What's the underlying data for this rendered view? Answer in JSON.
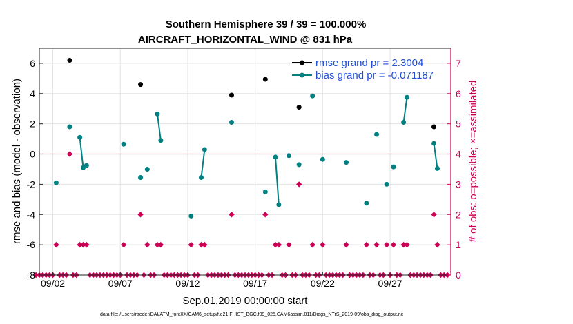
{
  "chart_data": {
    "type": "line",
    "title": "Southern Hemisphere 39 / 39 = 100.000%",
    "subtitle": "AIRCRAFT_HORIZONTAL_WIND @ 831 hPa",
    "xlabel": "Sep.01,2019 00:00:00 start",
    "ylabel": "rmse and bias (model - observation)",
    "y2label": "# of obs: o=possible; ×=assimilated",
    "xlim": [
      0,
      30.5
    ],
    "ylim": [
      -8,
      7
    ],
    "y2lim": [
      0,
      7.5
    ],
    "yticks": [
      -8,
      -6,
      -4,
      -2,
      0,
      2,
      4,
      6
    ],
    "y2ticks": [
      0,
      1,
      2,
      3,
      4,
      5,
      6,
      7
    ],
    "xticks": [
      {
        "value": 1.0,
        "label": "09/02"
      },
      {
        "value": 6.0,
        "label": "09/07"
      },
      {
        "value": 11.0,
        "label": "09/12"
      },
      {
        "value": 16.0,
        "label": "09/17"
      },
      {
        "value": 21.0,
        "label": "09/22"
      },
      {
        "value": 26.0,
        "label": "09/27"
      }
    ],
    "zero_line": 0,
    "grid": true,
    "legend_position": "top-right",
    "series": [
      {
        "name": "rmse grand pr = 2.3004",
        "color": "#000000",
        "points": [
          [
            2.25,
            6.2
          ],
          [
            7.5,
            4.6
          ],
          [
            14.25,
            3.9
          ],
          [
            16.75,
            4.95
          ],
          [
            19.25,
            3.1
          ],
          [
            29.25,
            1.8
          ]
        ]
      },
      {
        "name": "bias grand pr = -0.071187",
        "color": "#008080",
        "segments": [
          [
            [
              1.25,
              -1.9
            ]
          ],
          [
            [
              2.25,
              1.8
            ]
          ],
          [
            [
              3.0,
              1.1
            ],
            [
              3.25,
              -0.9
            ],
            [
              3.5,
              -0.75
            ]
          ],
          [
            [
              6.25,
              0.65
            ]
          ],
          [
            [
              7.5,
              -1.55
            ]
          ],
          [
            [
              8.0,
              -1.0
            ]
          ],
          [
            [
              8.75,
              2.65
            ],
            [
              9.0,
              0.9
            ]
          ],
          [
            [
              11.25,
              -4.1
            ]
          ],
          [
            [
              12.0,
              -1.55
            ],
            [
              12.25,
              0.3
            ]
          ],
          [
            [
              14.25,
              2.1
            ]
          ],
          [
            [
              16.75,
              -2.5
            ]
          ],
          [
            [
              17.5,
              -0.2
            ],
            [
              17.75,
              -3.35
            ]
          ],
          [
            [
              18.5,
              -0.1
            ]
          ],
          [
            [
              19.25,
              -0.7
            ]
          ],
          [
            [
              20.25,
              3.85
            ]
          ],
          [
            [
              21.0,
              -0.35
            ]
          ],
          [
            [
              22.75,
              -0.55
            ]
          ],
          [
            [
              24.25,
              -3.25
            ]
          ],
          [
            [
              25.0,
              1.3
            ]
          ],
          [
            [
              25.75,
              -2.0
            ]
          ],
          [
            [
              26.25,
              -0.85
            ]
          ],
          [
            [
              27.0,
              2.1
            ],
            [
              27.25,
              3.75
            ]
          ],
          [
            [
              29.25,
              0.7
            ],
            [
              29.5,
              -0.95
            ]
          ]
        ]
      }
    ],
    "obs_count": {
      "name": "# of obs assimilated",
      "color": "#cc0055",
      "axis": "right",
      "points": [
        [
          -0.25,
          0
        ],
        [
          0.0,
          0
        ],
        [
          0.25,
          0
        ],
        [
          0.5,
          0
        ],
        [
          0.75,
          0
        ],
        [
          1.0,
          0
        ],
        [
          1.25,
          1
        ],
        [
          1.5,
          0
        ],
        [
          1.75,
          0
        ],
        [
          2.0,
          0
        ],
        [
          2.25,
          4
        ],
        [
          2.5,
          0
        ],
        [
          2.75,
          0
        ],
        [
          3.0,
          1
        ],
        [
          3.25,
          1
        ],
        [
          3.5,
          1
        ],
        [
          3.75,
          0
        ],
        [
          4.0,
          0
        ],
        [
          4.25,
          0
        ],
        [
          4.5,
          0
        ],
        [
          4.75,
          0
        ],
        [
          5.0,
          0
        ],
        [
          5.25,
          0
        ],
        [
          5.5,
          0
        ],
        [
          5.75,
          0
        ],
        [
          6.0,
          0
        ],
        [
          6.25,
          1
        ],
        [
          6.5,
          0
        ],
        [
          6.75,
          0
        ],
        [
          7.0,
          0
        ],
        [
          7.25,
          0
        ],
        [
          7.5,
          2
        ],
        [
          7.75,
          0
        ],
        [
          8.0,
          1
        ],
        [
          8.25,
          0
        ],
        [
          8.5,
          0
        ],
        [
          8.75,
          1
        ],
        [
          9.0,
          1
        ],
        [
          9.25,
          0
        ],
        [
          9.5,
          0
        ],
        [
          9.75,
          0
        ],
        [
          10.0,
          0
        ],
        [
          10.25,
          0
        ],
        [
          10.5,
          0
        ],
        [
          10.75,
          0
        ],
        [
          11.0,
          0
        ],
        [
          11.25,
          1
        ],
        [
          11.5,
          0
        ],
        [
          11.75,
          0
        ],
        [
          12.0,
          1
        ],
        [
          12.25,
          1
        ],
        [
          12.5,
          0
        ],
        [
          12.75,
          0
        ],
        [
          13.0,
          0
        ],
        [
          13.25,
          0
        ],
        [
          13.5,
          0
        ],
        [
          13.75,
          0
        ],
        [
          14.0,
          0
        ],
        [
          14.25,
          2
        ],
        [
          14.5,
          0
        ],
        [
          14.75,
          0
        ],
        [
          15.0,
          0
        ],
        [
          15.25,
          0
        ],
        [
          15.5,
          0
        ],
        [
          15.75,
          0
        ],
        [
          16.0,
          0
        ],
        [
          16.25,
          0
        ],
        [
          16.5,
          0
        ],
        [
          16.75,
          2
        ],
        [
          17.0,
          0
        ],
        [
          17.25,
          0
        ],
        [
          17.5,
          1
        ],
        [
          17.75,
          1
        ],
        [
          18.0,
          0
        ],
        [
          18.25,
          0
        ],
        [
          18.5,
          1
        ],
        [
          18.75,
          0
        ],
        [
          19.0,
          0
        ],
        [
          19.25,
          3
        ],
        [
          19.5,
          0
        ],
        [
          19.75,
          0
        ],
        [
          20.0,
          0
        ],
        [
          20.25,
          1
        ],
        [
          20.5,
          0
        ],
        [
          20.75,
          0
        ],
        [
          21.0,
          1
        ],
        [
          21.25,
          0
        ],
        [
          21.5,
          0
        ],
        [
          21.75,
          0
        ],
        [
          22.0,
          0
        ],
        [
          22.25,
          0
        ],
        [
          22.5,
          0
        ],
        [
          22.75,
          1
        ],
        [
          23.0,
          0
        ],
        [
          23.25,
          0
        ],
        [
          23.5,
          0
        ],
        [
          23.75,
          0
        ],
        [
          24.0,
          0
        ],
        [
          24.25,
          1
        ],
        [
          24.5,
          0
        ],
        [
          24.75,
          0
        ],
        [
          25.0,
          1
        ],
        [
          25.25,
          0
        ],
        [
          25.5,
          0
        ],
        [
          25.75,
          1
        ],
        [
          26.0,
          0
        ],
        [
          26.25,
          1
        ],
        [
          26.5,
          0
        ],
        [
          26.75,
          0
        ],
        [
          27.0,
          1
        ],
        [
          27.25,
          1
        ],
        [
          27.5,
          0
        ],
        [
          27.75,
          0
        ],
        [
          28.0,
          0
        ],
        [
          28.25,
          0
        ],
        [
          28.5,
          0
        ],
        [
          28.75,
          0
        ],
        [
          29.0,
          0
        ],
        [
          29.25,
          2
        ],
        [
          29.5,
          1
        ],
        [
          29.75,
          0
        ],
        [
          30.0,
          0
        ],
        [
          30.25,
          0
        ]
      ]
    },
    "footnote": "data file: /Users/raeder/DAI/ATM_forcXX/CAM6_setup/f.e21.FHIST_BGC.f09_025.CAM6assim.011/Diags_NTrS_2019-09/obs_diag_output.nc"
  }
}
